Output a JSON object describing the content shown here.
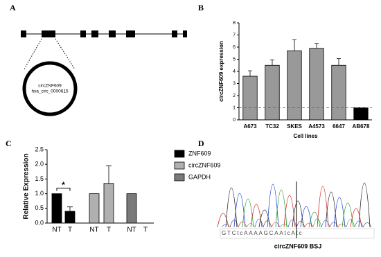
{
  "panel_labels": [
    "A",
    "B",
    "C",
    "D"
  ],
  "diagram": {
    "circle_labels": [
      "circZNF609",
      "hsa_circ_0000615"
    ]
  },
  "chromatogram": {
    "sequence": "GTCtcAAAAGCAAtcAtc",
    "caption": "circZNF609 BSJ"
  },
  "chart_data": [
    {
      "type": "bar",
      "y_label": "circZNF609 expression",
      "x_label": "Cell lines",
      "categories": [
        "A673",
        "TC32",
        "SKES",
        "A4573",
        "6647",
        "AB678"
      ],
      "values": [
        3.6,
        4.5,
        5.7,
        5.9,
        4.5,
        1.0
      ],
      "errors": [
        0.45,
        0.45,
        0.9,
        0.4,
        0.55,
        0
      ],
      "colors": [
        "#999999",
        "#999999",
        "#999999",
        "#999999",
        "#999999",
        "#000000"
      ],
      "reference_line": 1,
      "ylim": [
        0,
        8
      ],
      "yticks": [
        0,
        1,
        2,
        3,
        4,
        5,
        6,
        7,
        8
      ]
    },
    {
      "type": "grouped_bar",
      "y_label": "Relative Expression",
      "categories": [
        "NT",
        "T",
        "NT",
        "T",
        "NT",
        "T"
      ],
      "series": [
        {
          "name": "ZNF609",
          "color": "#000000",
          "values": [
            1.0,
            0.4,
            null,
            null,
            null,
            null
          ],
          "errors": [
            0,
            0.15,
            null,
            null,
            null,
            null
          ]
        },
        {
          "name": "circZNF609",
          "color": "#b0b0b0",
          "values": [
            null,
            null,
            1.0,
            1.35,
            null,
            null
          ],
          "errors": [
            null,
            null,
            0,
            0.6,
            null,
            null
          ]
        },
        {
          "name": "GAPDH",
          "color": "#7a7a7a",
          "values": [
            null,
            null,
            null,
            null,
            1.0,
            0
          ],
          "errors": [
            null,
            null,
            null,
            null,
            0,
            0
          ]
        }
      ],
      "annotation": "*",
      "ylim": [
        0,
        2.5
      ],
      "yticks": [
        {
          "value": 0,
          "label": "0.0"
        },
        0.5,
        {
          "value": 1,
          "label": "1.0"
        },
        1.5,
        {
          "value": 2,
          "label": "2.0"
        },
        2.5
      ]
    }
  ]
}
